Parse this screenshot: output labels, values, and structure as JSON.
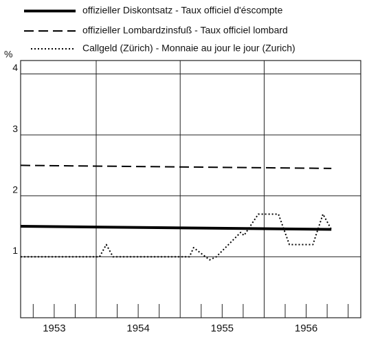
{
  "chart_data": {
    "type": "line",
    "y_label": "%",
    "xlim": [
      1953.1,
      1957.15
    ],
    "ylim": [
      0,
      4.22
    ],
    "yticks": [
      1,
      2,
      3,
      4
    ],
    "xticks": [
      1954,
      1955,
      1956
    ],
    "xtick_labels": [
      {
        "value": 1953.5,
        "label": "1953"
      },
      {
        "value": 1954.5,
        "label": "1954"
      },
      {
        "value": 1955.5,
        "label": "1955"
      },
      {
        "value": 1956.5,
        "label": "1956"
      }
    ],
    "xminor": [
      1953.25,
      1953.5,
      1953.75,
      1954.25,
      1954.5,
      1954.75,
      1955.25,
      1955.5,
      1955.75,
      1956.25,
      1956.5,
      1956.75,
      1957.0
    ],
    "grid": true,
    "series": [
      {
        "name": "offizieller Diskontsatz - Taux officiel d'éscompte",
        "color": "#000000",
        "style": "solid",
        "x": [
          1953.1,
          1956.8
        ],
        "values": [
          1.5,
          1.45
        ]
      },
      {
        "name": "offizieller Lombardzinsfuß - Taux officiel lombard",
        "color": "#000000",
        "style": "dashed",
        "x": [
          1953.1,
          1956.8
        ],
        "values": [
          2.5,
          2.45
        ]
      },
      {
        "name": "Callgeld (Zürich) - Monnaie au jour le jour (Zurich)",
        "color": "#000000",
        "style": "dotted",
        "x": [
          1953.1,
          1954.04,
          1954.12,
          1954.2,
          1955.11,
          1955.16,
          1955.35,
          1955.43,
          1955.72,
          1955.76,
          1955.93,
          1956.17,
          1956.3,
          1956.58,
          1956.7,
          1956.8
        ],
        "values": [
          1.0,
          1.0,
          1.2,
          1.0,
          1.0,
          1.15,
          0.95,
          1.0,
          1.4,
          1.35,
          1.7,
          1.7,
          1.2,
          1.2,
          1.7,
          1.45
        ]
      }
    ]
  }
}
